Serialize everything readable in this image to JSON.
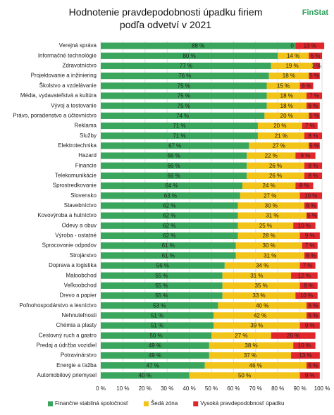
{
  "chart_data": {
    "type": "bar",
    "orientation": "horizontal",
    "stacked": true,
    "title": "Hodnotenie pravdepodobnosti úpadku firiem podľa odvetví v 2021",
    "logo": "FinStat",
    "categories": [
      "Verejná správa",
      "Informačné technológie",
      "Zdravotníctvo",
      "Projektovanie a inžiniering",
      "Školstvo a vzdelávanie",
      "Média, vydavateľstvá a kultúra",
      "Vývoj a testovanie",
      "Právo, poradenstvo a účtovníctvo",
      "Reklama",
      "Služby",
      "Elektrotechnika",
      "Hazard",
      "Financie",
      "Telekomunikácie",
      "Sprostredkovanie",
      "Slovensko",
      "Stavebníctvo",
      "Kovovýroba a hutníctvo",
      "Odevy a obuv",
      "Výroba - ostatné",
      "Spracovanie odpadov",
      "Strojárstvo",
      "Doprava a logistika",
      "Maloobchod",
      "Veľkoobchod",
      "Drevo a papier",
      "Poľnohospodárstvo a lesníctvo",
      "Nehnuteľnosti",
      "Chémia a plasty",
      "Cestovný ruch a gastro",
      "Predaj a údržba vozidiel",
      "Potravinárstvo",
      "Energie a ťažba",
      "Automobilový priemysel"
    ],
    "series": [
      {
        "name": "Finančne stabilná spoločnosť",
        "color": "#3aa55c",
        "values": [
          88,
          80,
          77,
          76,
          75,
          75,
          75,
          74,
          71,
          71,
          67,
          66,
          66,
          66,
          64,
          63,
          62,
          62,
          62,
          62,
          61,
          61,
          56,
          55,
          55,
          55,
          53,
          51,
          51,
          50,
          49,
          49,
          47,
          40
        ],
        "value_labels": [
          "88 %",
          "80 %",
          "77 %",
          "76 %",
          "75 %",
          "75 %",
          "75 %",
          "74 %",
          "71 %",
          "71 %",
          "67 %",
          "66 %",
          "66 %",
          "66 %",
          "64 %",
          "63 %",
          "62 %",
          "62 %",
          "62 %",
          "62 %",
          "61 %",
          "61 %",
          "56 %",
          "55 %",
          "55 %",
          "55 %",
          "53 %",
          "51 %",
          "51 %",
          "50 %",
          "49 %",
          "49 %",
          "47 %",
          "40 %"
        ]
      },
      {
        "name": "Šedá zóna",
        "color": "#f2c318",
        "values": [
          0,
          14,
          19,
          18,
          15,
          18,
          18,
          20,
          20,
          21,
          27,
          22,
          26,
          26,
          24,
          27,
          30,
          31,
          25,
          28,
          30,
          31,
          34,
          31,
          35,
          33,
          40,
          42,
          39,
          27,
          38,
          37,
          46,
          50
        ],
        "value_labels": [
          "0 %",
          "14 %",
          "19 %",
          "18 %",
          "15 %",
          "18 %",
          "18 %",
          "20 %",
          "20 %",
          "21 %",
          "27 %",
          "22 %",
          "26 %",
          "26 %",
          "24 %",
          "27 %",
          "30 %",
          "31 %",
          "25 %",
          "28 %",
          "30 %",
          "31 %",
          "34 %",
          "31 %",
          "35 %",
          "33 %",
          "40 %",
          "42 %",
          "39 %",
          "27 %",
          "38 %",
          "37 %",
          "46 %",
          "50 %"
        ]
      },
      {
        "name": "Vysoká pravdepodobnosť úpadku",
        "color": "#e0262b",
        "values": [
          13,
          6,
          3,
          5,
          6,
          7,
          6,
          5,
          7,
          8,
          5,
          9,
          8,
          8,
          8,
          10,
          6,
          5,
          10,
          9,
          7,
          6,
          7,
          12,
          8,
          10,
          6,
          6,
          9,
          20,
          10,
          13,
          6,
          9
        ],
        "value_labels": [
          "13 %",
          "6 %",
          "3 %",
          "5 %",
          "6 %",
          "7 %",
          "6 %",
          "5 %",
          "7 %",
          "8 %",
          "5 %",
          "9 %",
          "8 %",
          "8 %",
          "8 %",
          "10 %",
          "6 %",
          "5 %",
          "10 %",
          "9 %",
          "7 %",
          "6 %",
          "7 %",
          "12 %",
          "8 %",
          "10 %",
          "6 %",
          "6 %",
          "9 %",
          "20 %",
          "10 %",
          "13 %",
          "6 %",
          "9 %"
        ]
      }
    ],
    "xlim": [
      0,
      100
    ],
    "xticks": [
      {
        "value": 0,
        "label": "0 %"
      },
      {
        "value": 10,
        "label": "10 %"
      },
      {
        "value": 20,
        "label": "20 %"
      },
      {
        "value": 30,
        "label": "30 %"
      },
      {
        "value": 40,
        "label": "40 %"
      },
      {
        "value": 50,
        "label": "50 %"
      },
      {
        "value": 60,
        "label": "60 %"
      },
      {
        "value": 70,
        "label": "70 %"
      },
      {
        "value": 80,
        "label": "80 %"
      },
      {
        "value": 90,
        "label": "90 %"
      },
      {
        "value": 100,
        "label": "100 %"
      }
    ],
    "grid": true,
    "legend": "bottom"
  }
}
